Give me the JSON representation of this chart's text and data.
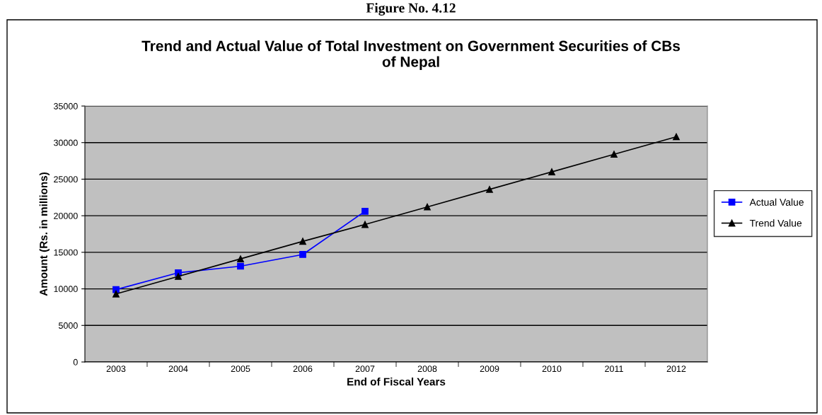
{
  "chart_data": {
    "type": "line",
    "title": "Trend and Actual Value of Total Investment on Government Securities of CBs\nof Nepal",
    "xlabel": "End of Fiscal Years",
    "ylabel": "Amount (Rs. in millions)",
    "annotations": [
      "Figure No. 4.12"
    ],
    "categories": [
      "2003",
      "2004",
      "2005",
      "2006",
      "2007",
      "2008",
      "2009",
      "2010",
      "2011",
      "2012"
    ],
    "series": [
      {
        "name": "Actual Value",
        "color": "#0000ff",
        "marker": "square",
        "values": [
          9900,
          12200,
          13100,
          14700,
          20600,
          null,
          null,
          null,
          null,
          null
        ]
      },
      {
        "name": "Trend Value",
        "color": "#000000",
        "marker": "triangle",
        "values": [
          9300,
          11700,
          14100,
          16500,
          18800,
          21200,
          23600,
          26000,
          28400,
          30800
        ]
      }
    ],
    "ylim": [
      0,
      35000
    ],
    "yticks": [
      0,
      5000,
      10000,
      15000,
      20000,
      25000,
      30000,
      35000
    ],
    "grid": "y",
    "legend": "right",
    "line_style": "solid"
  }
}
